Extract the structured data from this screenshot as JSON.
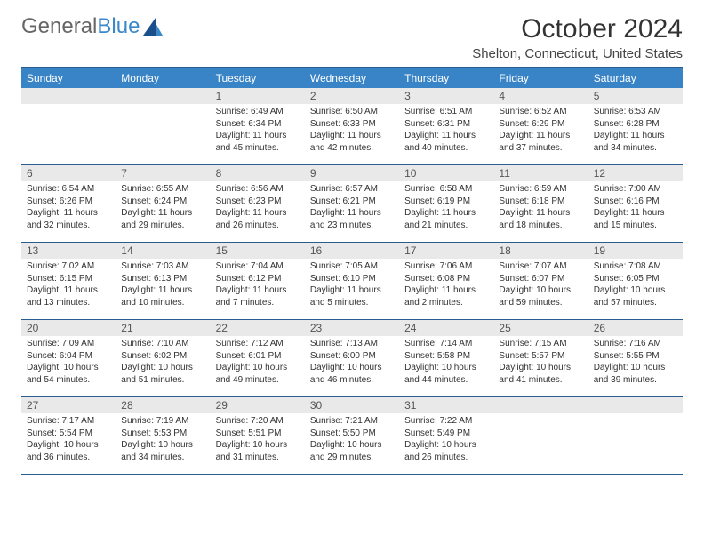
{
  "logo": {
    "part1": "General",
    "part2": "Blue"
  },
  "title": "October 2024",
  "location": "Shelton, Connecticut, United States",
  "colors": {
    "header_bg": "#3984c6",
    "header_text": "#ffffff",
    "border": "#2a5d8f",
    "daynum_bg": "#e9e9e9",
    "text": "#333333",
    "logo_blue": "#3b87c8"
  },
  "dayNames": [
    "Sunday",
    "Monday",
    "Tuesday",
    "Wednesday",
    "Thursday",
    "Friday",
    "Saturday"
  ],
  "weeks": [
    [
      {
        "n": "",
        "sr": "",
        "ss": "",
        "dl": ""
      },
      {
        "n": "",
        "sr": "",
        "ss": "",
        "dl": ""
      },
      {
        "n": "1",
        "sr": "Sunrise: 6:49 AM",
        "ss": "Sunset: 6:34 PM",
        "dl": "Daylight: 11 hours and 45 minutes."
      },
      {
        "n": "2",
        "sr": "Sunrise: 6:50 AM",
        "ss": "Sunset: 6:33 PM",
        "dl": "Daylight: 11 hours and 42 minutes."
      },
      {
        "n": "3",
        "sr": "Sunrise: 6:51 AM",
        "ss": "Sunset: 6:31 PM",
        "dl": "Daylight: 11 hours and 40 minutes."
      },
      {
        "n": "4",
        "sr": "Sunrise: 6:52 AM",
        "ss": "Sunset: 6:29 PM",
        "dl": "Daylight: 11 hours and 37 minutes."
      },
      {
        "n": "5",
        "sr": "Sunrise: 6:53 AM",
        "ss": "Sunset: 6:28 PM",
        "dl": "Daylight: 11 hours and 34 minutes."
      }
    ],
    [
      {
        "n": "6",
        "sr": "Sunrise: 6:54 AM",
        "ss": "Sunset: 6:26 PM",
        "dl": "Daylight: 11 hours and 32 minutes."
      },
      {
        "n": "7",
        "sr": "Sunrise: 6:55 AM",
        "ss": "Sunset: 6:24 PM",
        "dl": "Daylight: 11 hours and 29 minutes."
      },
      {
        "n": "8",
        "sr": "Sunrise: 6:56 AM",
        "ss": "Sunset: 6:23 PM",
        "dl": "Daylight: 11 hours and 26 minutes."
      },
      {
        "n": "9",
        "sr": "Sunrise: 6:57 AM",
        "ss": "Sunset: 6:21 PM",
        "dl": "Daylight: 11 hours and 23 minutes."
      },
      {
        "n": "10",
        "sr": "Sunrise: 6:58 AM",
        "ss": "Sunset: 6:19 PM",
        "dl": "Daylight: 11 hours and 21 minutes."
      },
      {
        "n": "11",
        "sr": "Sunrise: 6:59 AM",
        "ss": "Sunset: 6:18 PM",
        "dl": "Daylight: 11 hours and 18 minutes."
      },
      {
        "n": "12",
        "sr": "Sunrise: 7:00 AM",
        "ss": "Sunset: 6:16 PM",
        "dl": "Daylight: 11 hours and 15 minutes."
      }
    ],
    [
      {
        "n": "13",
        "sr": "Sunrise: 7:02 AM",
        "ss": "Sunset: 6:15 PM",
        "dl": "Daylight: 11 hours and 13 minutes."
      },
      {
        "n": "14",
        "sr": "Sunrise: 7:03 AM",
        "ss": "Sunset: 6:13 PM",
        "dl": "Daylight: 11 hours and 10 minutes."
      },
      {
        "n": "15",
        "sr": "Sunrise: 7:04 AM",
        "ss": "Sunset: 6:12 PM",
        "dl": "Daylight: 11 hours and 7 minutes."
      },
      {
        "n": "16",
        "sr": "Sunrise: 7:05 AM",
        "ss": "Sunset: 6:10 PM",
        "dl": "Daylight: 11 hours and 5 minutes."
      },
      {
        "n": "17",
        "sr": "Sunrise: 7:06 AM",
        "ss": "Sunset: 6:08 PM",
        "dl": "Daylight: 11 hours and 2 minutes."
      },
      {
        "n": "18",
        "sr": "Sunrise: 7:07 AM",
        "ss": "Sunset: 6:07 PM",
        "dl": "Daylight: 10 hours and 59 minutes."
      },
      {
        "n": "19",
        "sr": "Sunrise: 7:08 AM",
        "ss": "Sunset: 6:05 PM",
        "dl": "Daylight: 10 hours and 57 minutes."
      }
    ],
    [
      {
        "n": "20",
        "sr": "Sunrise: 7:09 AM",
        "ss": "Sunset: 6:04 PM",
        "dl": "Daylight: 10 hours and 54 minutes."
      },
      {
        "n": "21",
        "sr": "Sunrise: 7:10 AM",
        "ss": "Sunset: 6:02 PM",
        "dl": "Daylight: 10 hours and 51 minutes."
      },
      {
        "n": "22",
        "sr": "Sunrise: 7:12 AM",
        "ss": "Sunset: 6:01 PM",
        "dl": "Daylight: 10 hours and 49 minutes."
      },
      {
        "n": "23",
        "sr": "Sunrise: 7:13 AM",
        "ss": "Sunset: 6:00 PM",
        "dl": "Daylight: 10 hours and 46 minutes."
      },
      {
        "n": "24",
        "sr": "Sunrise: 7:14 AM",
        "ss": "Sunset: 5:58 PM",
        "dl": "Daylight: 10 hours and 44 minutes."
      },
      {
        "n": "25",
        "sr": "Sunrise: 7:15 AM",
        "ss": "Sunset: 5:57 PM",
        "dl": "Daylight: 10 hours and 41 minutes."
      },
      {
        "n": "26",
        "sr": "Sunrise: 7:16 AM",
        "ss": "Sunset: 5:55 PM",
        "dl": "Daylight: 10 hours and 39 minutes."
      }
    ],
    [
      {
        "n": "27",
        "sr": "Sunrise: 7:17 AM",
        "ss": "Sunset: 5:54 PM",
        "dl": "Daylight: 10 hours and 36 minutes."
      },
      {
        "n": "28",
        "sr": "Sunrise: 7:19 AM",
        "ss": "Sunset: 5:53 PM",
        "dl": "Daylight: 10 hours and 34 minutes."
      },
      {
        "n": "29",
        "sr": "Sunrise: 7:20 AM",
        "ss": "Sunset: 5:51 PM",
        "dl": "Daylight: 10 hours and 31 minutes."
      },
      {
        "n": "30",
        "sr": "Sunrise: 7:21 AM",
        "ss": "Sunset: 5:50 PM",
        "dl": "Daylight: 10 hours and 29 minutes."
      },
      {
        "n": "31",
        "sr": "Sunrise: 7:22 AM",
        "ss": "Sunset: 5:49 PM",
        "dl": "Daylight: 10 hours and 26 minutes."
      },
      {
        "n": "",
        "sr": "",
        "ss": "",
        "dl": ""
      },
      {
        "n": "",
        "sr": "",
        "ss": "",
        "dl": ""
      }
    ]
  ]
}
